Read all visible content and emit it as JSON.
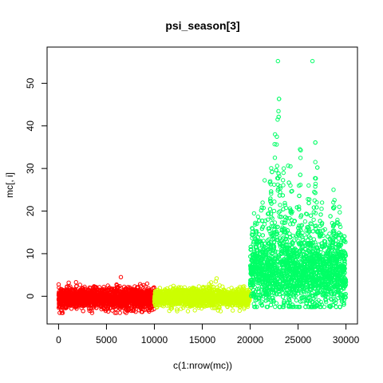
{
  "chart_data": {
    "type": "scatter",
    "title": "psi_season[3]",
    "xlabel": "c(1:nrow(mc))",
    "ylabel": "mc[, i]",
    "xlim": [
      -1200,
      31200
    ],
    "ylim": [
      -6.5,
      58.5
    ],
    "x_ticks": [
      0,
      5000,
      10000,
      15000,
      20000,
      25000,
      30000
    ],
    "y_ticks": [
      0,
      10,
      20,
      30,
      40,
      50
    ],
    "grid": false,
    "legend": "none",
    "marker": "open-circle",
    "series": [
      {
        "color": "#FF0000",
        "x_range": [
          1,
          10000
        ],
        "center": -0.5,
        "spread": 1.2,
        "min": -3.9,
        "max": 4.5
      },
      {
        "color": "#CCFF00",
        "x_range": [
          10001,
          20000
        ],
        "center": -0.3,
        "spread": 1.0,
        "min": -3.5,
        "max": 4.2
      },
      {
        "color": "#00FF66",
        "x_range": [
          20001,
          30000
        ],
        "center": 5,
        "spread": 4,
        "min": -2.5,
        "max": 55.2,
        "peaks": [
          {
            "x": 20700,
            "y": 17
          },
          {
            "x": 21300,
            "y": 22
          },
          {
            "x": 22100,
            "y": 27
          },
          {
            "x": 22600,
            "y": 38
          },
          {
            "x": 22900,
            "y": 55.2
          },
          {
            "x": 23500,
            "y": 30
          },
          {
            "x": 24200,
            "y": 26
          },
          {
            "x": 25200,
            "y": 34.5
          },
          {
            "x": 26100,
            "y": 26
          },
          {
            "x": 26800,
            "y": 31.5
          },
          {
            "x": 27500,
            "y": 22
          },
          {
            "x": 28700,
            "y": 25
          },
          {
            "x": 29300,
            "y": 21
          }
        ]
      }
    ]
  }
}
